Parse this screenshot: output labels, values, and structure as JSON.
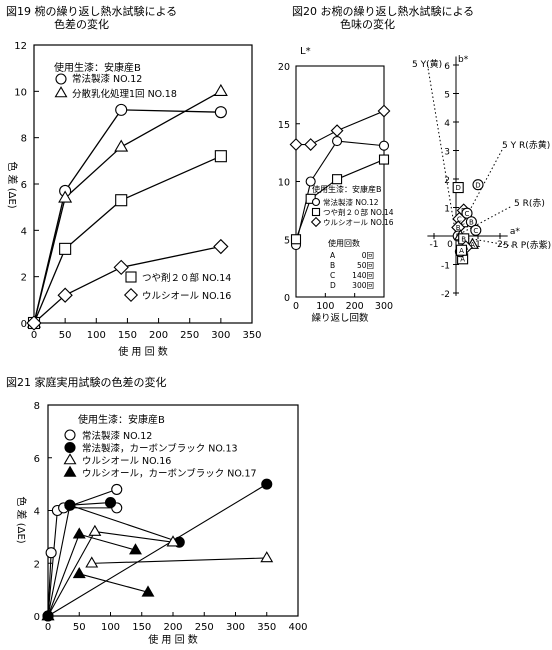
{
  "fig19": {
    "title_line1": "図19 椀の繰り返し熱水試験による",
    "title_line2": "色差の変化",
    "chart_data": {
      "type": "line",
      "xlabel": "使 用 回 数",
      "ylabel": "色 差 (ΔE)",
      "xlim": [
        0,
        350
      ],
      "ylim": [
        0,
        12
      ],
      "xticks": [
        "0",
        "50",
        "100",
        "150",
        "200",
        "250",
        "300",
        "350"
      ],
      "yticks": [
        "0",
        "2",
        "4",
        "6",
        "8",
        "10",
        "12"
      ],
      "legend_title": "使用生漆：安康産B",
      "series": [
        {
          "name": "常法製漆 NO.12",
          "marker": "circle",
          "x": [
            0,
            50,
            140,
            300
          ],
          "y": [
            0,
            5.7,
            9.2,
            9.1
          ]
        },
        {
          "name": "分散乳化処理1回 NO.18",
          "marker": "triangle",
          "x": [
            0,
            50,
            140,
            300
          ],
          "y": [
            0,
            5.4,
            7.6,
            10.0
          ]
        },
        {
          "name": "つや剤２０部 NO.14",
          "marker": "square",
          "x": [
            0,
            50,
            140,
            300
          ],
          "y": [
            0,
            3.2,
            5.3,
            7.2
          ]
        },
        {
          "name": "ウルシオール NO.16",
          "marker": "diamond",
          "x": [
            0,
            50,
            140,
            300
          ],
          "y": [
            0,
            1.2,
            2.4,
            3.3
          ]
        }
      ]
    }
  },
  "fig20": {
    "title_line1": "図20 お椀の繰り返し熱水試験による",
    "title_line2": "色味の変化",
    "left_chart": {
      "type": "line",
      "xlabel": "繰り返し回数",
      "ylabel": "L*",
      "xlim": [
        0,
        300
      ],
      "ylim": [
        0,
        20
      ],
      "xticks": [
        "0",
        "100",
        "200",
        "300"
      ],
      "yticks": [
        "0",
        "5",
        "10",
        "15",
        "20"
      ],
      "legend_title": "使用生漆：安康産B",
      "legend2_title": "使用回数",
      "usage_legend": [
        {
          "code": "A",
          "value": "0回"
        },
        {
          "code": "B",
          "value": "50回"
        },
        {
          "code": "C",
          "value": "140回"
        },
        {
          "code": "D",
          "value": "300回"
        }
      ],
      "series": [
        {
          "name": "常法製漆 NO.12",
          "marker": "circle",
          "x": [
            0,
            50,
            140,
            300
          ],
          "y": [
            4.5,
            10.0,
            13.5,
            13.1
          ]
        },
        {
          "name": "つや剤２０部 NO.14",
          "marker": "square",
          "x": [
            0,
            50,
            140,
            300
          ],
          "y": [
            5.0,
            8.5,
            10.2,
            11.9
          ]
        },
        {
          "name": "ウルシオール NO.16",
          "marker": "diamond",
          "x": [
            0,
            50,
            140,
            300
          ],
          "y": [
            13.2,
            13.2,
            14.4,
            16.1
          ]
        }
      ]
    },
    "right_chart": {
      "type": "scatter",
      "xlabel": "a*",
      "ylabel": "b*",
      "xlim": [
        -1,
        2
      ],
      "ylim": [
        -2,
        6
      ],
      "xticks": [
        "-1",
        "0",
        "1",
        "2"
      ],
      "yticks": [
        "-2",
        "-1",
        "1",
        "2",
        "3",
        "4",
        "5",
        "6"
      ],
      "hue_labels": [
        "5 Y(黄)",
        "5 Y R(赤黄)",
        "5 R(赤)",
        "5 R P(赤紫)"
      ],
      "points": [
        {
          "marker": "square",
          "letter": "D",
          "a": 0.1,
          "b": 1.7
        },
        {
          "marker": "circle",
          "letter": "D",
          "a": 1.0,
          "b": 1.8
        },
        {
          "marker": "diamond",
          "letter": "D",
          "a": 0.35,
          "b": 0.9
        },
        {
          "marker": "square",
          "letter": "C",
          "a": 0.3,
          "b": 0.5
        },
        {
          "marker": "circle",
          "letter": "C",
          "a": 0.5,
          "b": 0.8
        },
        {
          "marker": "diamond",
          "letter": "C",
          "a": 0.15,
          "b": 0.6
        },
        {
          "marker": "circle",
          "letter": "B",
          "a": 0.7,
          "b": 0.5
        },
        {
          "marker": "diamond",
          "letter": "B",
          "a": 0.1,
          "b": 0.3
        },
        {
          "marker": "circle",
          "letter": "C",
          "a": 0.9,
          "b": 0.2
        },
        {
          "marker": "circle",
          "letter": "B",
          "a": 0.1,
          "b": 0.0
        },
        {
          "marker": "triangle",
          "letter": "B",
          "a": 0.2,
          "b": 0.0
        },
        {
          "marker": "square",
          "letter": "B",
          "a": 0.35,
          "b": -0.1
        },
        {
          "marker": "square",
          "letter": "A",
          "a": 0.3,
          "b": -0.8
        },
        {
          "marker": "triangle",
          "letter": "A",
          "a": 0.75,
          "b": -0.3
        },
        {
          "marker": "circle",
          "letter": "A",
          "a": 0.2,
          "b": -0.55
        },
        {
          "marker": "diamond",
          "letter": "A",
          "a": 0.45,
          "b": -0.4
        },
        {
          "marker": "square",
          "letter": "A",
          "a": 0.25,
          "b": -0.5
        }
      ]
    }
  },
  "fig21": {
    "title": "図21 家庭実用試験の色差の変化",
    "chart_data": {
      "type": "scatter",
      "xlabel": "使 用 回 数",
      "ylabel": "色 差 (ΔE)",
      "xlim": [
        0,
        400
      ],
      "ylim": [
        0,
        8
      ],
      "xticks": [
        "0",
        "50",
        "100",
        "150",
        "200",
        "250",
        "300",
        "350",
        "400"
      ],
      "yticks": [
        "0",
        "2",
        "4",
        "6",
        "8"
      ],
      "legend_title": "使用生漆：安康産B",
      "series": [
        {
          "name": "常法製漆 NO.12",
          "marker": "circle",
          "filled": false,
          "points": [
            [
              0,
              0
            ],
            [
              5,
              2.4
            ],
            [
              15,
              4.0
            ],
            [
              25,
              4.1
            ],
            [
              35,
              4.2
            ],
            [
              110,
              4.8
            ],
            [
              110,
              4.1
            ]
          ]
        },
        {
          "name": "常法製漆，カーボンブラック NO.13",
          "marker": "circle",
          "filled": true,
          "points": [
            [
              0,
              0
            ],
            [
              35,
              4.2
            ],
            [
              100,
              4.3
            ],
            [
              210,
              2.8
            ],
            [
              350,
              5.0
            ]
          ]
        },
        {
          "name": "ウルシオール NO.16",
          "marker": "triangle",
          "filled": false,
          "points": [
            [
              0,
              0
            ],
            [
              70,
              2.0
            ],
            [
              75,
              3.2
            ],
            [
              200,
              2.8
            ],
            [
              350,
              2.2
            ]
          ]
        },
        {
          "name": "ウルシオール，カーボンブラック NO.17",
          "marker": "triangle",
          "filled": true,
          "points": [
            [
              0,
              0
            ],
            [
              50,
              3.1
            ],
            [
              50,
              1.6
            ],
            [
              140,
              2.5
            ],
            [
              160,
              0.9
            ]
          ]
        }
      ],
      "segments": [
        [
          [
            0,
            0
          ],
          [
            5,
            2.4
          ]
        ],
        [
          [
            0,
            0
          ],
          [
            15,
            4.0
          ]
        ],
        [
          [
            15,
            4.0
          ],
          [
            110,
            4.8
          ]
        ],
        [
          [
            25,
            4.1
          ],
          [
            110,
            4.1
          ]
        ],
        [
          [
            0,
            0
          ],
          [
            35,
            4.2
          ]
        ],
        [
          [
            35,
            4.2
          ],
          [
            100,
            4.3
          ]
        ],
        [
          [
            35,
            4.2
          ],
          [
            210,
            2.8
          ]
        ],
        [
          [
            0,
            0
          ],
          [
            350,
            5.0
          ]
        ],
        [
          [
            0,
            0
          ],
          [
            75,
            3.2
          ]
        ],
        [
          [
            75,
            3.2
          ],
          [
            200,
            2.8
          ]
        ],
        [
          [
            75,
            2.0
          ],
          [
            350,
            2.2
          ]
        ],
        [
          [
            0,
            0
          ],
          [
            50,
            3.1
          ]
        ],
        [
          [
            50,
            3.1
          ],
          [
            140,
            2.5
          ]
        ],
        [
          [
            50,
            1.6
          ],
          [
            160,
            0.9
          ]
        ]
      ]
    }
  }
}
